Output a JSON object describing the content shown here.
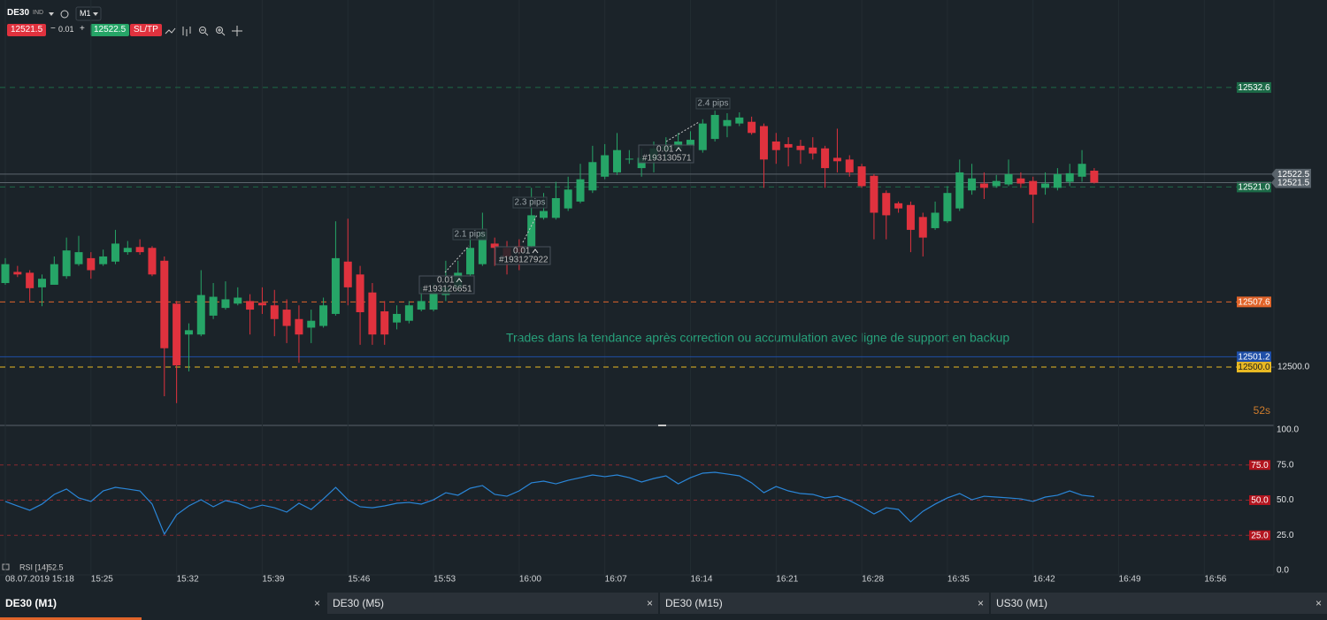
{
  "toolbar": {
    "symbol": "DE30",
    "market": "IND",
    "timeframe": "M1",
    "volume": 0.01,
    "sltp": "SL/TP"
  },
  "tabs": [
    "DE30 (M1)",
    "DE30 (M5)",
    "DE30 (M15)",
    "US30 (M1)"
  ],
  "chart_data": [
    {
      "type": "candlestick",
      "up_color": "#26a567",
      "down_color": "#e0323e",
      "x": [
        "15:18",
        "15:19",
        "15:20",
        "15:21",
        "15:22",
        "15:23",
        "15:24",
        "15:25",
        "15:26",
        "15:27",
        "15:28",
        "15:29",
        "15:30",
        "15:31",
        "15:32",
        "15:33",
        "15:34",
        "15:35",
        "15:36",
        "15:37",
        "15:38",
        "15:39",
        "15:40",
        "15:41",
        "15:42",
        "15:43",
        "15:44",
        "15:45",
        "15:46",
        "15:47",
        "15:48",
        "15:49",
        "15:50",
        "15:51",
        "15:52",
        "15:53",
        "15:54",
        "15:55",
        "15:56",
        "15:57",
        "15:58",
        "15:59",
        "16:00",
        "16:01",
        "16:02",
        "16:03",
        "16:04",
        "16:05",
        "16:06",
        "16:07",
        "16:08",
        "16:09",
        "16:10",
        "16:11",
        "16:12",
        "16:13",
        "16:14",
        "16:15",
        "16:16",
        "16:17",
        "16:18",
        "16:19",
        "16:20",
        "16:21",
        "16:22",
        "16:23",
        "16:24",
        "16:25",
        "16:26",
        "16:27",
        "16:28",
        "16:29",
        "16:30",
        "16:31",
        "16:32",
        "16:33",
        "16:34",
        "16:35",
        "16:36",
        "16:37",
        "16:38",
        "16:39",
        "16:40",
        "16:41",
        "16:42",
        "16:43",
        "16:44",
        "16:45",
        "16:46",
        "16:47"
      ],
      "open": [
        12509.8,
        12511.1,
        12511.0,
        12509.3,
        12509.6,
        12510.6,
        12512.0,
        12512.7,
        12512.0,
        12512.3,
        12513.4,
        12514.0,
        12513.9,
        12512.4,
        12507.4,
        12503.8,
        12503.8,
        12506.0,
        12506.9,
        12507.4,
        12507.7,
        12507.5,
        12507.2,
        12506.7,
        12505.6,
        12504.6,
        12504.8,
        12506.2,
        12512.3,
        12510.8,
        12508.7,
        12506.5,
        12505.2,
        12505.4,
        12506.7,
        12506.7,
        12508.4,
        12509.3,
        12510.8,
        12512.0,
        12514.4,
        12513.9,
        12514.1,
        12514.1,
        12517.4,
        12517.4,
        12518.5,
        12519.3,
        12520.6,
        12522.2,
        12522.7,
        12524.2,
        12523.2,
        12524.2,
        12525.3,
        12525.5,
        12525.8,
        12525.3,
        12526.6,
        12528.1,
        12528.4,
        12528.6,
        12528.1,
        12526.3,
        12526.0,
        12525.8,
        12525.6,
        12525.5,
        12524.4,
        12524.2,
        12523.4,
        12522.3,
        12520.3,
        12519.1,
        12518.9,
        12517.5,
        12516.2,
        12517.0,
        12518.5,
        12520.6,
        12521.4,
        12521.1,
        12521.3,
        12522.0,
        12521.7,
        12520.9,
        12520.9,
        12521.6,
        12522.2,
        12522.9
      ],
      "high": [
        12512.7,
        12511.8,
        12511.3,
        12510.8,
        12512.9,
        12515.1,
        12515.3,
        12513.4,
        12513.7,
        12516.0,
        12514.7,
        12514.9,
        12514.1,
        12512.9,
        12507.7,
        12505.1,
        12511.3,
        12509.8,
        12510.0,
        12509.3,
        12508.5,
        12509.3,
        12509.0,
        12507.9,
        12507.2,
        12506.7,
        12508.1,
        12517.0,
        12517.3,
        12511.8,
        12509.8,
        12507.7,
        12507.2,
        12507.7,
        12509.3,
        12509.8,
        12512.4,
        12512.4,
        12515.5,
        12518.0,
        12515.1,
        12514.7,
        12514.9,
        12520.9,
        12520.3,
        12521.6,
        12522.2,
        12523.7,
        12525.8,
        12526.0,
        12527.3,
        12525.3,
        12525.5,
        12526.3,
        12526.8,
        12527.3,
        12527.5,
        12528.9,
        12529.9,
        12529.6,
        12529.7,
        12529.2,
        12528.4,
        12527.3,
        12526.8,
        12526.5,
        12526.8,
        12525.8,
        12527.8,
        12524.7,
        12523.7,
        12522.5,
        12520.6,
        12519.3,
        12519.3,
        12518.0,
        12519.3,
        12521.1,
        12524.2,
        12523.7,
        12522.7,
        12522.4,
        12524.2,
        12522.7,
        12522.2,
        12522.7,
        12523.2,
        12523.7,
        12525.3,
        12523.2
      ],
      "low": [
        12509.6,
        12510.5,
        12507.7,
        12507.1,
        12509.6,
        12510.3,
        12511.8,
        12510.3,
        12511.8,
        12512.0,
        12513.1,
        12513.1,
        12510.6,
        12496.6,
        12495.8,
        12499.5,
        12503.6,
        12505.6,
        12506.7,
        12507.2,
        12503.8,
        12506.2,
        12503.6,
        12502.8,
        12500.5,
        12502.8,
        12504.6,
        12506.0,
        12507.2,
        12502.6,
        12502.6,
        12502.6,
        12504.4,
        12505.1,
        12506.5,
        12506.5,
        12507.7,
        12508.7,
        12510.6,
        12511.8,
        12511.8,
        12510.8,
        12511.3,
        12513.9,
        12517.2,
        12517.2,
        12518.2,
        12519.1,
        12520.3,
        12521.9,
        12522.4,
        12523.7,
        12522.2,
        12522.7,
        12524.2,
        12525.3,
        12525.5,
        12525.0,
        12526.3,
        12526.8,
        12528.1,
        12527.1,
        12520.9,
        12523.7,
        12523.4,
        12523.7,
        12524.2,
        12520.9,
        12522.7,
        12522.2,
        12520.9,
        12514.9,
        12514.9,
        12518.0,
        12513.4,
        12512.9,
        12516.0,
        12516.8,
        12518.2,
        12520.1,
        12519.6,
        12520.9,
        12521.1,
        12520.9,
        12516.8,
        12520.1,
        12520.6,
        12521.1,
        12521.6,
        12521.4
      ],
      "close": [
        12512.0,
        12510.8,
        12509.2,
        12510.3,
        12512.0,
        12513.6,
        12513.4,
        12511.3,
        12512.9,
        12514.4,
        12513.9,
        12513.4,
        12510.8,
        12502.2,
        12500.2,
        12504.3,
        12508.4,
        12508.2,
        12507.9,
        12508.1,
        12506.7,
        12507.2,
        12505.6,
        12504.8,
        12503.8,
        12505.4,
        12507.2,
        12512.7,
        12509.3,
        12506.4,
        12503.8,
        12503.8,
        12506.2,
        12507.2,
        12507.7,
        12508.7,
        12509.3,
        12511.0,
        12513.9,
        12515.8,
        12513.9,
        12512.9,
        12513.4,
        12517.7,
        12518.2,
        12519.7,
        12520.7,
        12521.9,
        12523.9,
        12524.7,
        12525.3,
        12524.3,
        12524.4,
        12525.5,
        12525.8,
        12526.3,
        12526.5,
        12528.4,
        12529.4,
        12528.8,
        12529.1,
        12527.3,
        12524.2,
        12525.3,
        12525.6,
        12525.3,
        12524.9,
        12523.2,
        12524.0,
        12522.7,
        12521.1,
        12518.0,
        12517.7,
        12518.5,
        12516.0,
        12515.1,
        12518.0,
        12520.3,
        12522.7,
        12522.0,
        12520.9,
        12521.7,
        12522.5,
        12521.4,
        12520.1,
        12521.4,
        12522.5,
        12522.6,
        12523.7,
        12521.5
      ],
      "xticks": [
        {
          "value": "15:18",
          "label": "08.07.2019 15:18"
        },
        "15:25",
        "15:32",
        "15:39",
        "15:46",
        "15:53",
        "16:00",
        "16:07",
        "16:14",
        "16:21",
        "16:28",
        "16:35",
        "16:42",
        "16:49",
        "16:56"
      ],
      "ylim": [
        12493.2,
        12542.8
      ],
      "yticks": [
        {
          "value": 12500,
          "label": "12500.0"
        }
      ],
      "bid": 12521.5,
      "ask": 12522.5,
      "levels": [
        {
          "value": 12532.6,
          "color": "#1c6a47"
        },
        {
          "value": 12521.0,
          "label": "12521.0",
          "color": "#1c6a47"
        },
        {
          "value": 12507.6,
          "color": "#e0642a"
        },
        {
          "value": 12501.2,
          "color": "#1f4fa8",
          "style": "solid"
        },
        {
          "value": 12500.0,
          "label": "12500.0",
          "color": "#e8b923",
          "text_color": "#1c1c1c"
        }
      ],
      "trades": [
        {
          "volume": 0.01,
          "ticket": "#193126651",
          "pips": "2.1 pips"
        },
        {
          "volume": 0.01,
          "ticket": "#193127922",
          "pips": "2.3 pips"
        },
        {
          "volume": 0.01,
          "ticket": "#193130571",
          "pips": "2.4 pips"
        }
      ],
      "annotation": "Trades dans la tendance après correction ou accumulation avec ligne de support en backup",
      "countdown": "52s"
    },
    {
      "type": "line",
      "title": "RSI [14]",
      "color": "#2a86d8",
      "values": [
        49.1,
        45.9,
        42.8,
        47.2,
        54.1,
        57.9,
        51.6,
        49.1,
        56.6,
        59.1,
        57.9,
        56.6,
        47.2,
        25.8,
        39.6,
        45.9,
        50.3,
        45.3,
        49.7,
        47.8,
        44.0,
        46.5,
        44.6,
        41.5,
        47.8,
        43.4,
        50.9,
        59.1,
        50.3,
        45.3,
        44.6,
        45.9,
        47.8,
        48.4,
        47.2,
        50.3,
        55.3,
        53.5,
        58.5,
        60.4,
        54.1,
        52.8,
        56.6,
        62.3,
        63.5,
        61.6,
        64.1,
        66.0,
        67.9,
        66.7,
        67.9,
        66.0,
        62.9,
        65.4,
        67.3,
        61.6,
        66.0,
        69.2,
        69.8,
        68.6,
        67.3,
        62.3,
        55.3,
        59.7,
        56.6,
        54.7,
        54.1,
        51.6,
        52.8,
        49.7,
        45.3,
        40.2,
        44.6,
        43.4,
        34.6,
        42.1,
        47.2,
        51.6,
        54.7,
        50.3,
        52.8,
        52.2,
        51.6,
        50.9,
        49.1,
        52.2,
        53.5,
        56.6,
        53.5,
        52.5
      ],
      "ylim": [
        0,
        100
      ],
      "yticks": [
        {
          "value": 100,
          "label": "100.0"
        },
        {
          "value": 75,
          "label": "75.0"
        },
        {
          "value": 50,
          "label": "50.0"
        },
        {
          "value": 25,
          "label": "25.0"
        },
        {
          "value": 0,
          "label": "0.0"
        }
      ]
    }
  ]
}
